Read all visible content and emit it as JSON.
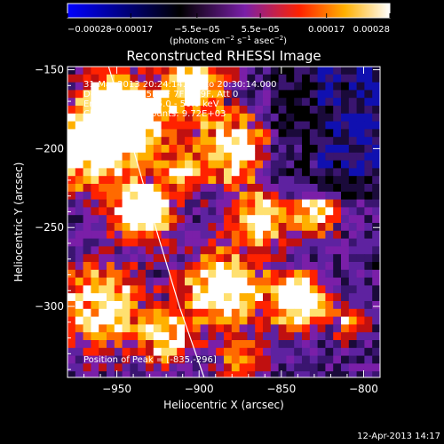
{
  "chart_data": {
    "type": "heatmap",
    "title": "Reconstructed RHESSI Image",
    "xlabel": "Heliocentric X (arcsec)",
    "ylabel": "Heliocentric Y (arcsec)",
    "xlim": [
      -980,
      -790
    ],
    "ylim": [
      -345,
      -148
    ],
    "xticks": [
      -950,
      -900,
      -850,
      -800
    ],
    "xtick_labels": [
      "−950",
      "−900",
      "−850",
      "−800"
    ],
    "yticks": [
      -150,
      -200,
      -250,
      -300
    ],
    "ytick_labels": [
      "−150",
      "−200",
      "−250",
      "−300"
    ],
    "colorbar": {
      "range": [
        -0.00028,
        0.00028
      ],
      "ticks": [
        -0.00028,
        -0.00017,
        -5.5e-05,
        5.5e-05,
        0.00017,
        0.00028
      ],
      "tick_labels": [
        "−0.00028",
        "−0.00017",
        "−5.5e−05",
        "5.5e−05",
        "0.00017",
        "0.00028"
      ],
      "unit_label_parts": [
        "(photons cm",
        "−2",
        " s",
        "−1",
        " asec",
        "−2",
        ")"
      ],
      "colors": [
        "#0000ff",
        "#000000",
        "#7a1fa8",
        "#ff2200",
        "#ffb000",
        "#ffffff"
      ]
    },
    "annotations": [
      "31-Mar-2013 20:24:14.000 to 20:30:14.000",
      "Detectors: 3F 5F 6F 7F 8F 9F, Att 0",
      "Energy Range: 25.0 - 50.0 keV",
      "Clean     Total counts: 9.72E+03"
    ],
    "peak_label": "Position of Peak = [-835,-296]",
    "limb_curve": [
      [
        -955,
        -148
      ],
      [
        -940,
        -200
      ],
      [
        -925,
        -255
      ],
      [
        -912,
        -300
      ],
      [
        -897,
        -345
      ]
    ],
    "grid": false,
    "legend": "none"
  },
  "footer": {
    "timestamp": "12-Apr-2013 14:17"
  }
}
